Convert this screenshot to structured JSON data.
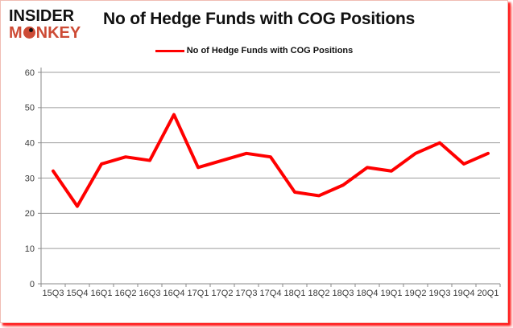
{
  "logo": {
    "line1": "INSIDER",
    "monkey_prefix": "M",
    "monkey_suffix": "NKEY",
    "brand_color": "#cd4b35"
  },
  "header": {
    "title": "No of Hedge Funds with COG Positions"
  },
  "legend": {
    "label": "No of Hedge Funds with COG Positions",
    "line_color": "#ff0000"
  },
  "chart_data": {
    "type": "line",
    "title": "No of Hedge Funds with COG Positions",
    "categories": [
      "15Q3",
      "15Q4",
      "16Q1",
      "16Q2",
      "16Q3",
      "16Q4",
      "17Q1",
      "17Q2",
      "17Q3",
      "17Q4",
      "18Q1",
      "18Q2",
      "18Q3",
      "18Q4",
      "19Q1",
      "19Q2",
      "19Q3",
      "19Q4",
      "20Q1"
    ],
    "series": [
      {
        "name": "No of Hedge Funds with COG Positions",
        "color": "#ff0000",
        "values": [
          32,
          22,
          34,
          36,
          35,
          48,
          33,
          35,
          37,
          36,
          26,
          25,
          28,
          33,
          32,
          37,
          40,
          34,
          37
        ]
      }
    ],
    "xlabel": "",
    "ylabel": "",
    "ylim": [
      0,
      60
    ],
    "yticks": [
      0,
      10,
      20,
      30,
      40,
      50,
      60
    ],
    "grid": true,
    "legend_position": "top",
    "colors": {
      "gridline": "#9c9c9c",
      "axis": "#8a8a8a",
      "tick_label": "#3a3a3a"
    }
  }
}
